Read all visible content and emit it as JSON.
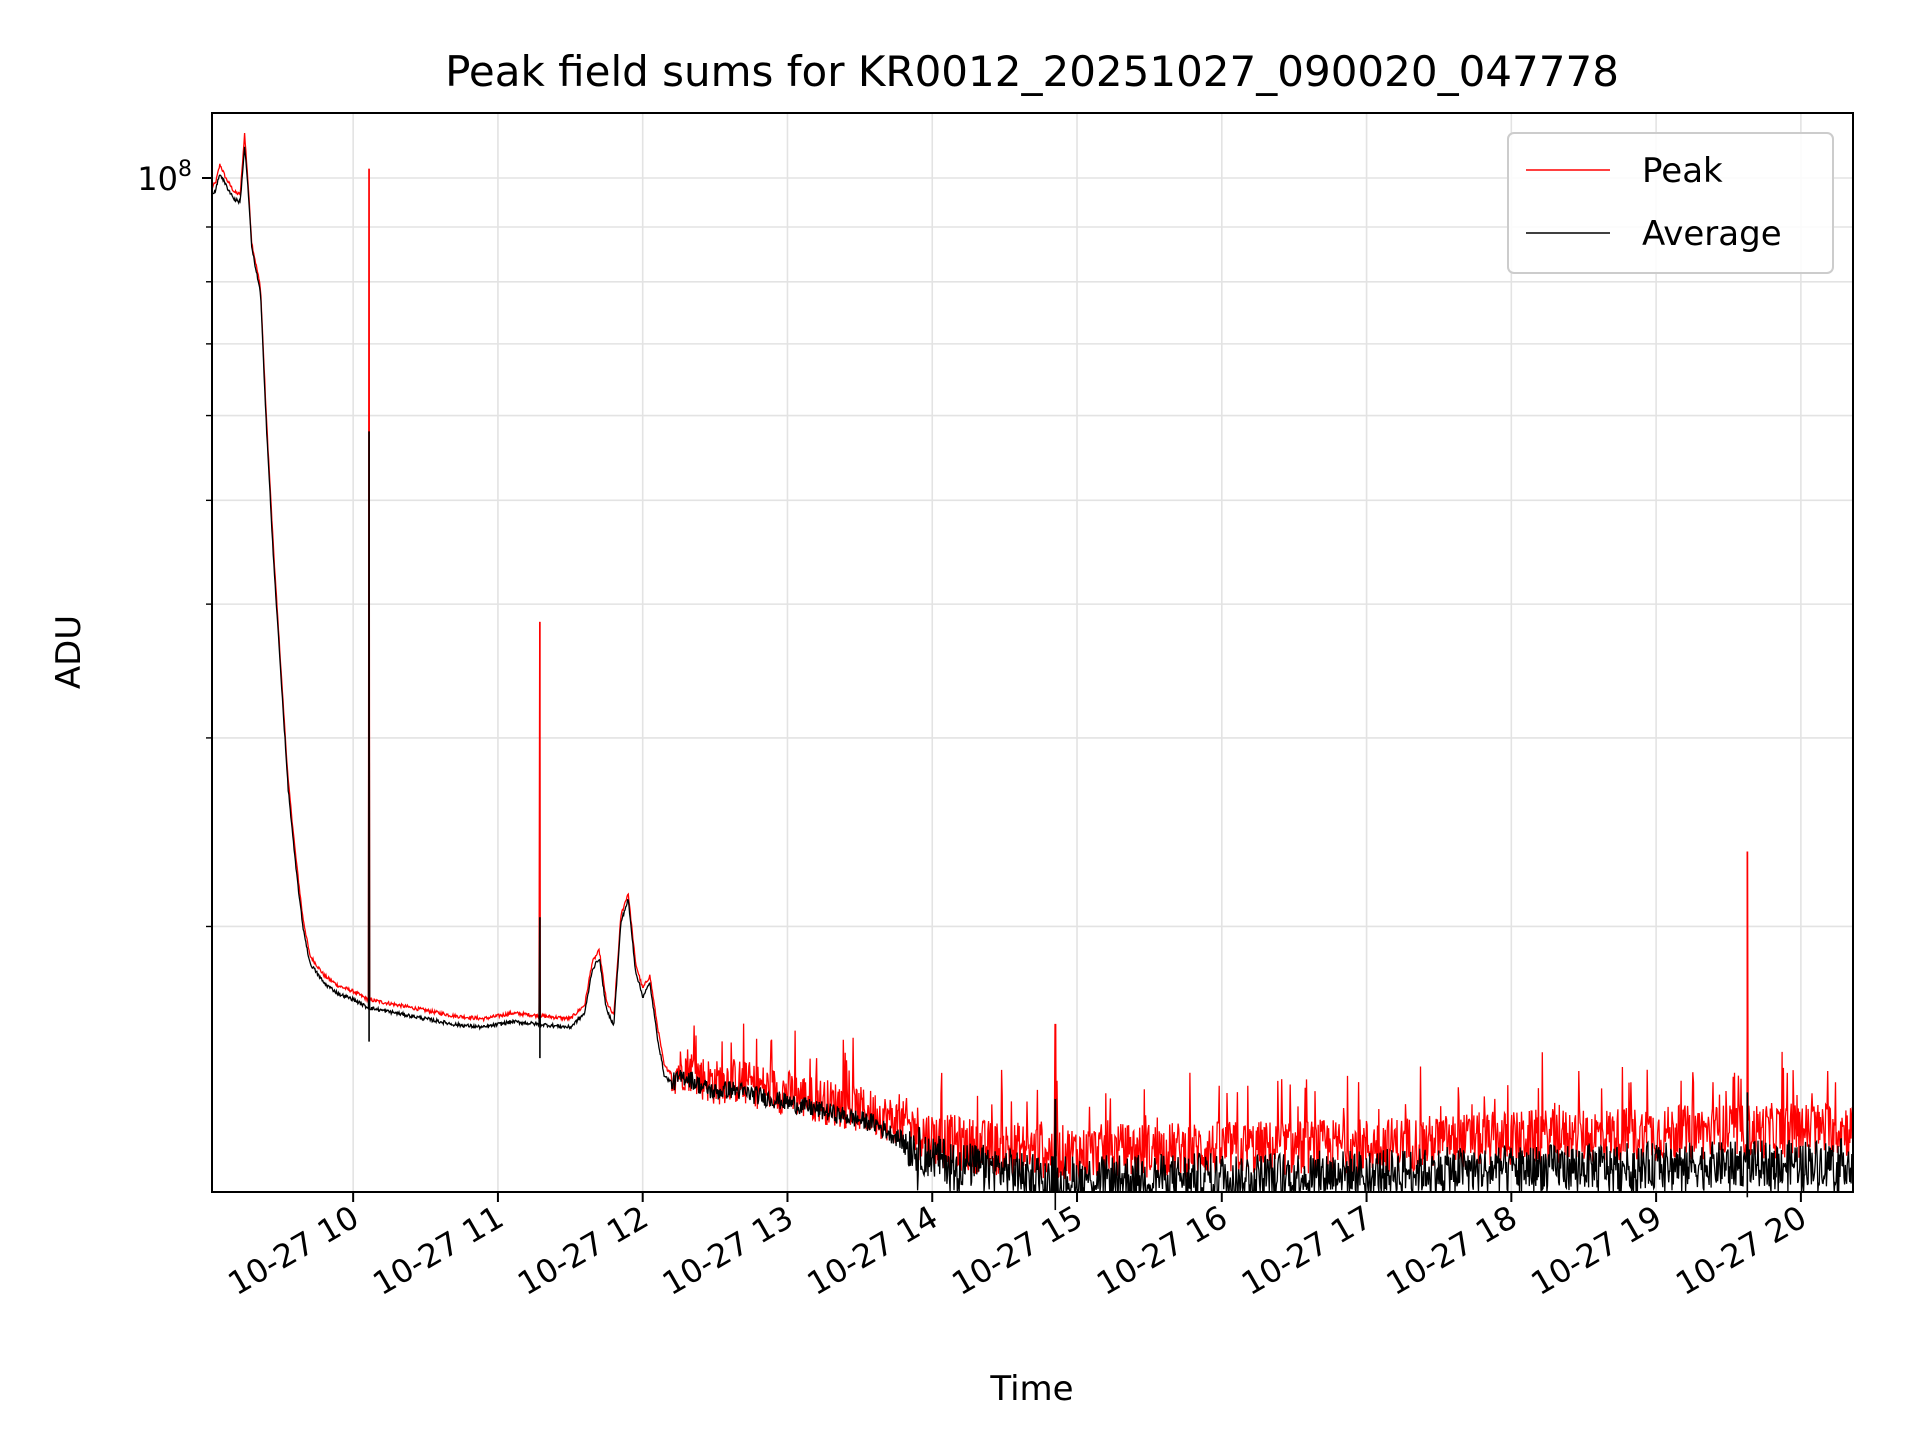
{
  "chart_data": {
    "type": "line",
    "title": "Peak field sums for KR0012_20251027_090020_047778",
    "xlabel": "Time",
    "ylabel": "ADU",
    "yscale": "log",
    "xlim": [
      9.025,
      20.36
    ],
    "ylim": [
      11300000,
      115000000
    ],
    "grid": true,
    "legend_position": "upper right",
    "y_major_ticks": [
      {
        "value": 100000000,
        "base": "10",
        "exp": "8"
      }
    ],
    "y_minor_ticks": [
      20000000,
      30000000,
      40000000,
      50000000,
      60000000,
      70000000,
      80000000,
      90000000
    ],
    "x_ticks": [
      {
        "value": 10,
        "label": "10-27 10"
      },
      {
        "value": 11,
        "label": "10-27 11"
      },
      {
        "value": 12,
        "label": "10-27 12"
      },
      {
        "value": 13,
        "label": "10-27 13"
      },
      {
        "value": 14,
        "label": "10-27 14"
      },
      {
        "value": 15,
        "label": "10-27 15"
      },
      {
        "value": 16,
        "label": "10-27 16"
      },
      {
        "value": 17,
        "label": "10-27 17"
      },
      {
        "value": 18,
        "label": "10-27 18"
      },
      {
        "value": 19,
        "label": "10-27 19"
      },
      {
        "value": 20,
        "label": "10-27 20"
      }
    ],
    "series": [
      {
        "name": "Peak",
        "color": "#ff0000",
        "x": [
          9.025,
          9.05,
          9.08,
          9.12,
          9.18,
          9.22,
          9.25,
          9.27,
          9.3,
          9.36,
          9.4,
          9.45,
          9.5,
          9.55,
          9.6,
          9.65,
          9.7,
          9.8,
          9.9,
          10.0,
          10.1,
          10.3,
          10.5,
          10.7,
          10.9,
          11.1,
          11.3,
          11.5,
          11.6,
          11.65,
          11.7,
          11.75,
          11.8,
          11.85,
          11.9,
          11.95,
          12.0,
          12.05,
          12.1,
          12.15,
          12.2,
          12.3,
          12.4,
          12.5,
          12.6,
          12.8,
          13.0,
          13.2,
          13.4,
          13.6,
          13.8,
          14.0,
          14.2,
          14.4,
          14.6,
          14.8,
          15.0,
          15.2,
          15.5,
          16.0,
          16.5,
          17.0,
          17.5,
          18.0,
          18.5,
          19.0,
          19.5,
          20.0,
          20.36
        ],
        "values": [
          98000000,
          99000000,
          103000000,
          100000000,
          97000000,
          96500000,
          110000000,
          101000000,
          87000000,
          79000000,
          60000000,
          45000000,
          35000000,
          27500000,
          23500000,
          20500000,
          18800000,
          18000000,
          17600000,
          17400000,
          17100000,
          16900000,
          16700000,
          16500000,
          16400000,
          16600000,
          16500000,
          16400000,
          16900000,
          18500000,
          19000000,
          17000000,
          16500000,
          20500000,
          21500000,
          18500000,
          17500000,
          18000000,
          16200000,
          14800000,
          14600000,
          14800000,
          14500000,
          14300000,
          14400000,
          14200000,
          14000000,
          13800000,
          13600000,
          13400000,
          13100000,
          12700000,
          12550000,
          12450000,
          12400000,
          12350000,
          12300000,
          12350000,
          12380000,
          12420000,
          12450000,
          12500000,
          12600000,
          12700000,
          12780000,
          12830000,
          12880000,
          12930000,
          12950000
        ],
        "spikes": [
          {
            "x": 10.11,
            "value": 102000000
          },
          {
            "x": 11.29,
            "value": 38500000
          },
          {
            "x": 14.85,
            "value": 16200000
          },
          {
            "x": 19.63,
            "value": 23500000
          }
        ]
      },
      {
        "name": "Average",
        "color": "#000000",
        "x": [
          9.025,
          9.05,
          9.08,
          9.12,
          9.18,
          9.22,
          9.25,
          9.27,
          9.3,
          9.36,
          9.4,
          9.45,
          9.5,
          9.55,
          9.6,
          9.65,
          9.7,
          9.8,
          9.9,
          10.0,
          10.1,
          10.3,
          10.5,
          10.7,
          10.9,
          11.1,
          11.3,
          11.5,
          11.6,
          11.65,
          11.7,
          11.75,
          11.8,
          11.85,
          11.9,
          11.95,
          12.0,
          12.05,
          12.1,
          12.15,
          12.2,
          12.3,
          12.4,
          12.5,
          12.6,
          12.8,
          13.0,
          13.2,
          13.4,
          13.6,
          13.8,
          14.0,
          14.2,
          14.4,
          14.6,
          14.8,
          15.0,
          15.2,
          15.5,
          16.0,
          16.5,
          17.0,
          17.5,
          18.0,
          18.5,
          19.0,
          19.5,
          20.0,
          20.36
        ],
        "values": [
          96500000,
          97500000,
          101000000,
          98500000,
          95500000,
          95000000,
          107000000,
          99500000,
          86000000,
          78000000,
          59000000,
          44000000,
          34500000,
          27000000,
          23000000,
          20100000,
          18500000,
          17700000,
          17300000,
          17100000,
          16800000,
          16600000,
          16400000,
          16200000,
          16100000,
          16300000,
          16200000,
          16100000,
          16600000,
          18200000,
          18700000,
          16700000,
          16200000,
          20200000,
          21200000,
          18200000,
          17200000,
          17700000,
          15800000,
          14500000,
          14300000,
          14500000,
          14200000,
          14000000,
          14100000,
          13900000,
          13700000,
          13500000,
          13300000,
          13100000,
          12600000,
          12200000,
          12000000,
          11900000,
          11800000,
          11700000,
          11650000,
          11650000,
          11680000,
          11720000,
          11750000,
          11800000,
          11850000,
          11900000,
          11950000,
          11980000,
          12000000,
          12050000,
          12080000
        ],
        "spikes": [
          {
            "x": 10.11,
            "value": 58000000
          },
          {
            "x": 11.29,
            "value": 20400000
          },
          {
            "x": 14.85,
            "value": 13800000
          },
          {
            "x": 19.63,
            "value": 14000000
          }
        ]
      }
    ]
  }
}
